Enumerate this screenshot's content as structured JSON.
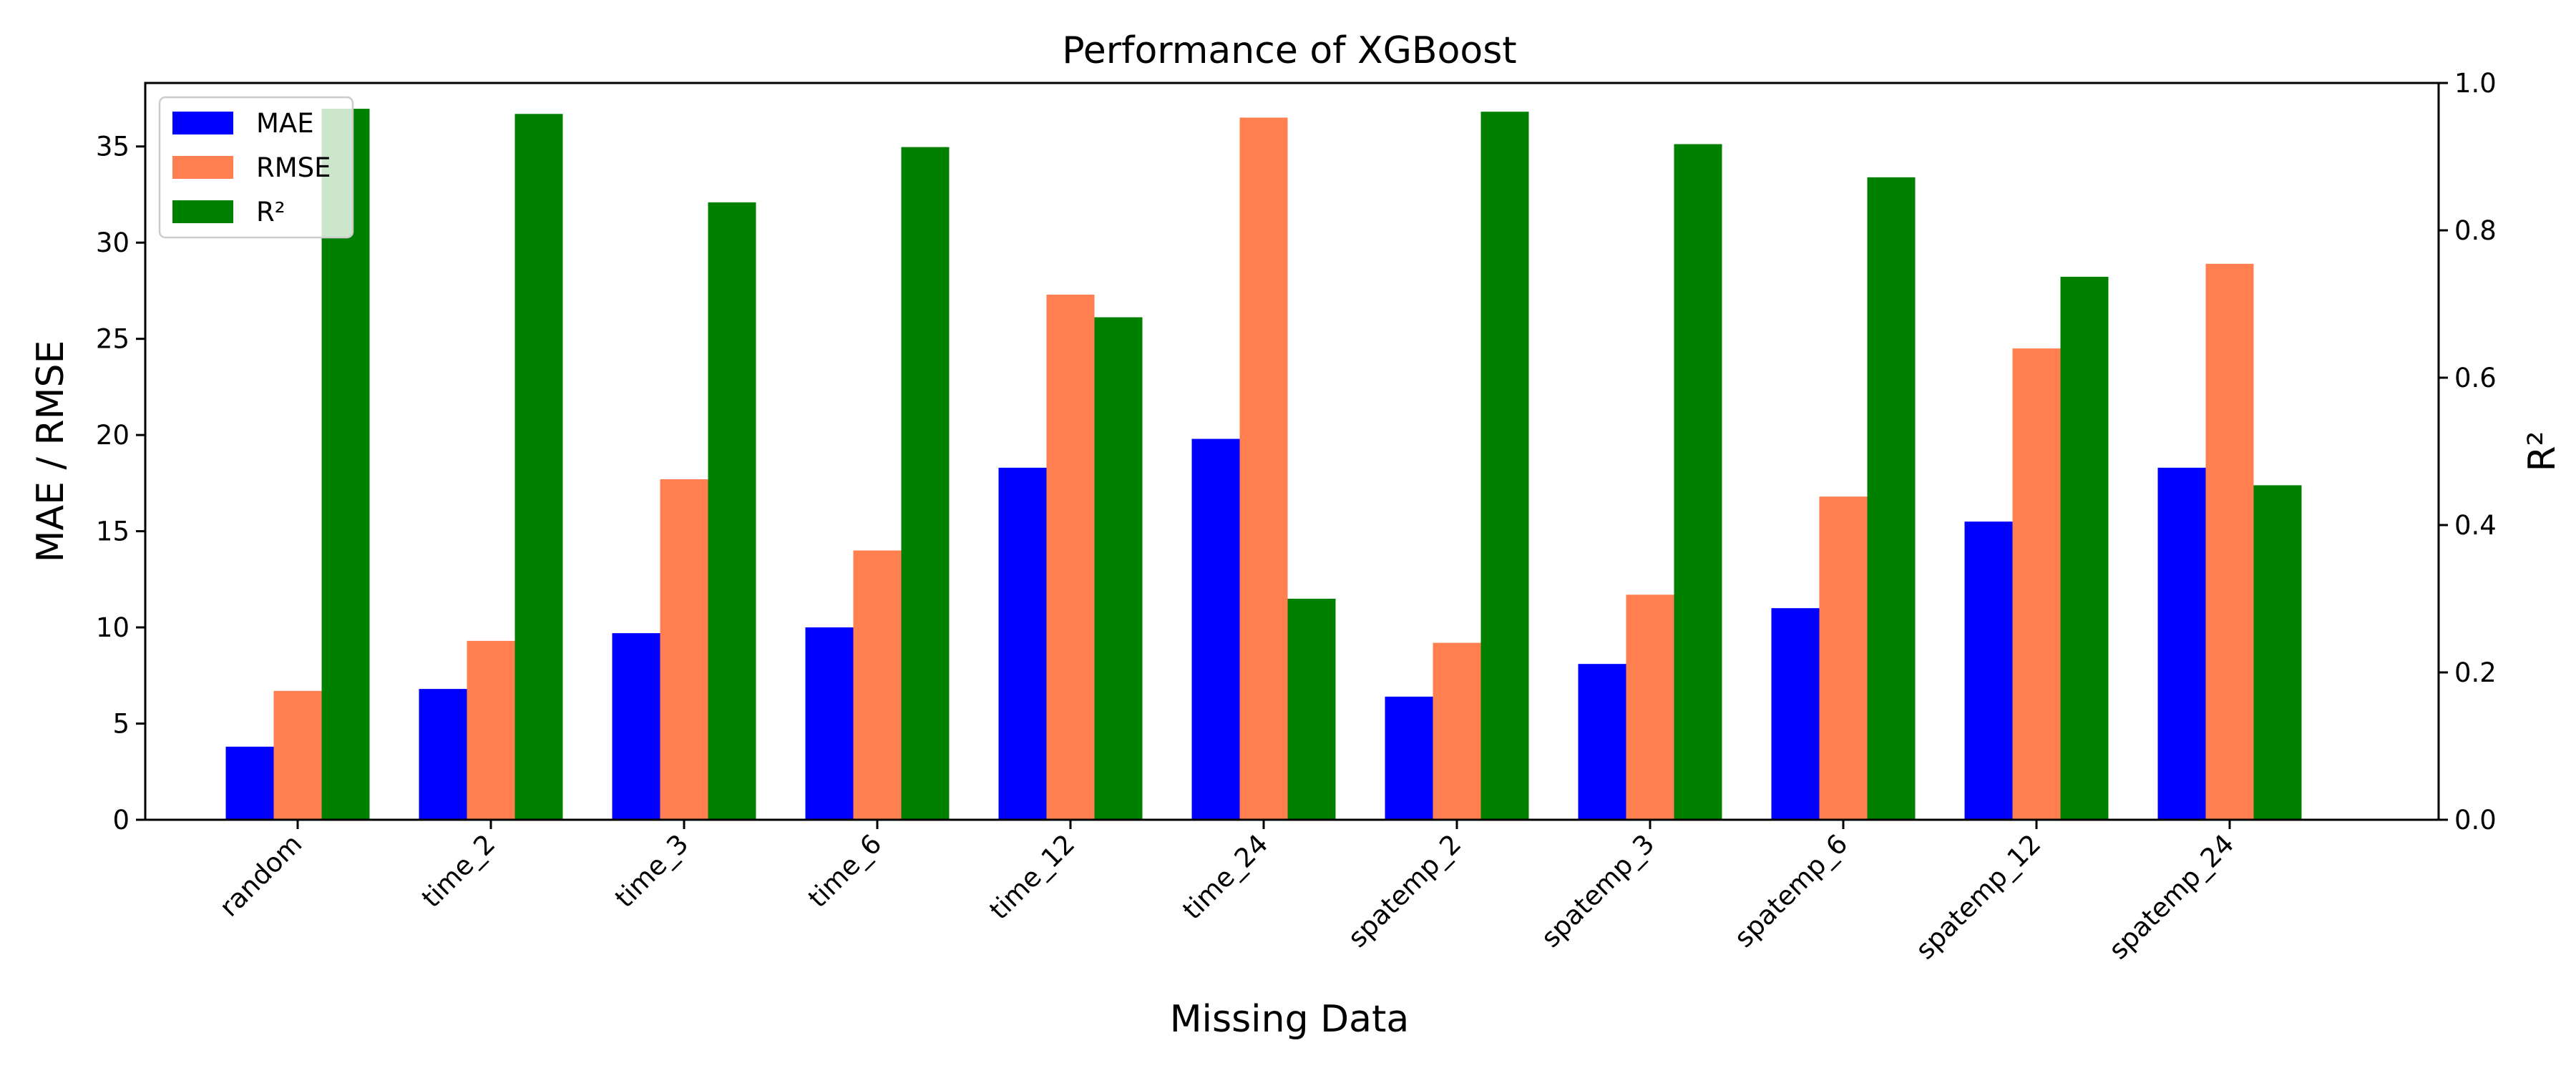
{
  "chart_data": {
    "type": "bar",
    "title": "Performance of XGBoost",
    "xlabel": "Missing Data",
    "ylabel": "MAE / RMSE",
    "ylabel_right": "R²",
    "categories": [
      "random",
      "time_2",
      "time_3",
      "time_6",
      "time_12",
      "time_24",
      "spatemp_2",
      "spatemp_3",
      "spatemp_6",
      "spatemp_12",
      "spatemp_24"
    ],
    "series": [
      {
        "name": "MAE",
        "axis": "left",
        "color": "#0000ff",
        "values": [
          3.8,
          6.8,
          9.7,
          10.0,
          18.3,
          19.8,
          6.4,
          8.1,
          11.0,
          15.5,
          18.3
        ]
      },
      {
        "name": "RMSE",
        "axis": "left",
        "color": "#ff7f50",
        "values": [
          6.7,
          9.3,
          17.7,
          14.0,
          27.3,
          36.5,
          9.2,
          11.7,
          16.8,
          24.5,
          28.9
        ]
      },
      {
        "name": "R²",
        "axis": "right",
        "color": "#008000",
        "values": [
          0.965,
          0.958,
          0.838,
          0.913,
          0.682,
          0.3,
          0.961,
          0.917,
          0.872,
          0.737,
          0.454
        ]
      }
    ],
    "ylim": [
      0,
      38.3
    ],
    "ylim_right": [
      0,
      1.0
    ],
    "yticks": [
      0,
      5,
      10,
      15,
      20,
      25,
      30,
      35
    ],
    "yticks_right": [
      "0.0",
      "0.2",
      "0.4",
      "0.6",
      "0.8",
      "1.0"
    ],
    "grid": false,
    "legend_position": "top-left"
  }
}
